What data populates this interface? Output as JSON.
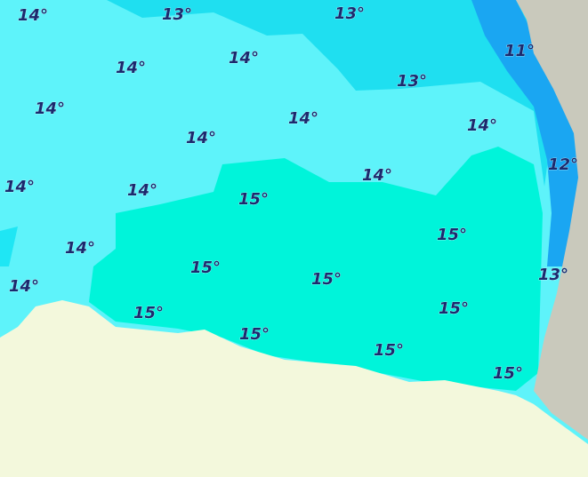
{
  "labels": [
    "14°",
    "13°",
    "13°",
    "14°",
    "14°",
    "11°",
    "13°",
    "14°",
    "14°",
    "14°",
    "14°",
    "12°",
    "14°",
    "14°",
    "14°",
    "15°",
    "15°",
    "14°",
    "15°",
    "15°",
    "14°",
    "13°",
    "15°",
    "15°",
    "15°",
    "15°",
    "15°"
  ]
}
